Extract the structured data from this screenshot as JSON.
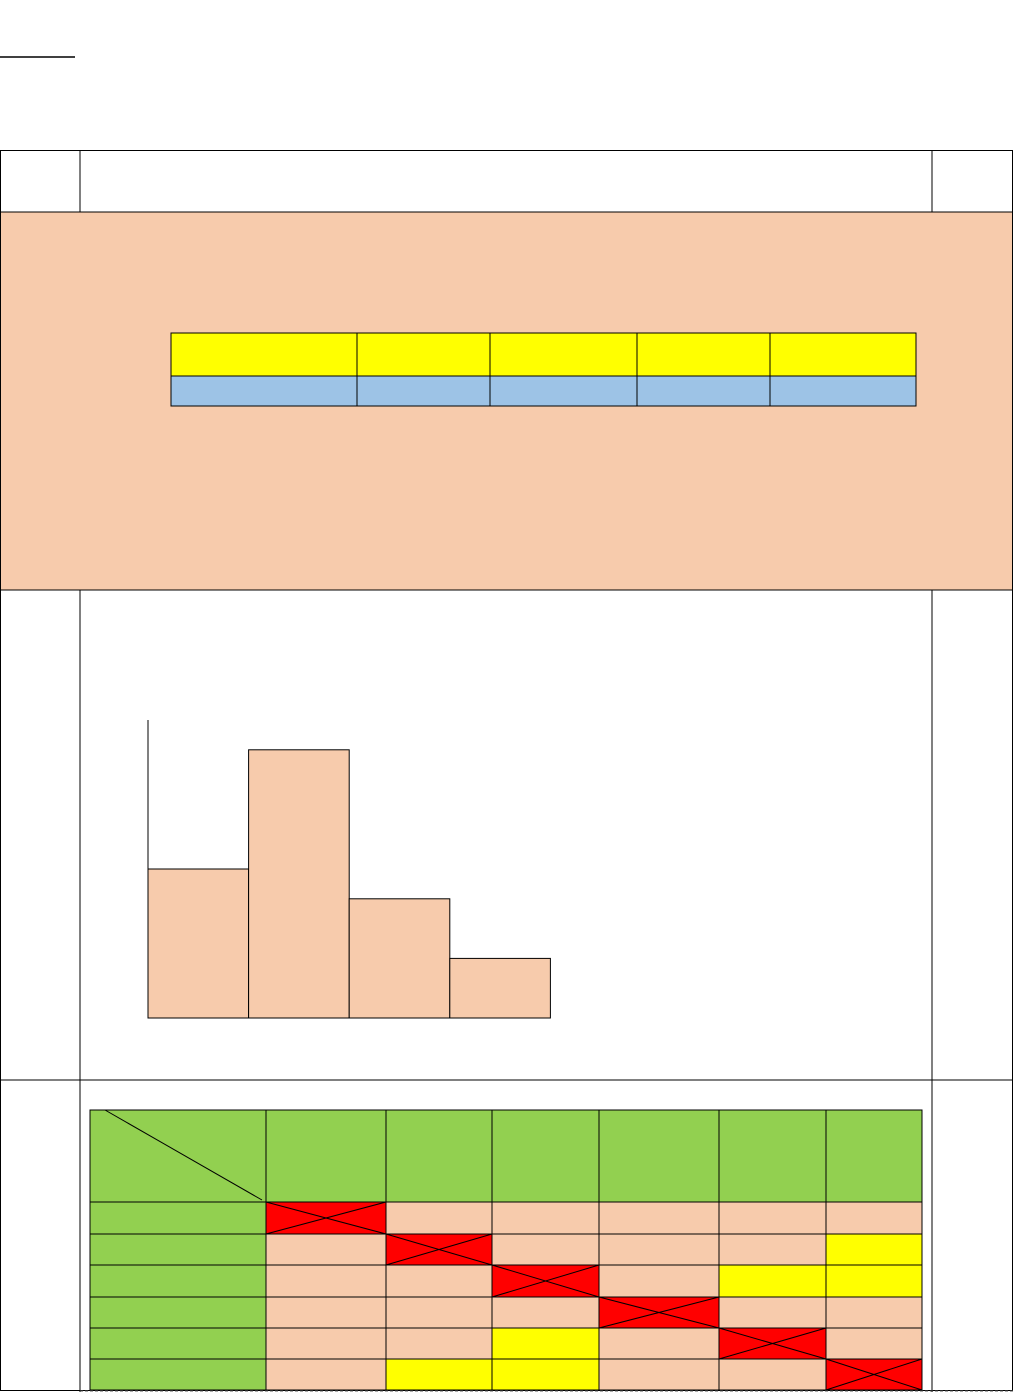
{
  "chart_data": {
    "type": "bar",
    "values": [
      5,
      9,
      4,
      2
    ],
    "color": "#f7cbac",
    "ylim": [
      0,
      10
    ]
  }
}
